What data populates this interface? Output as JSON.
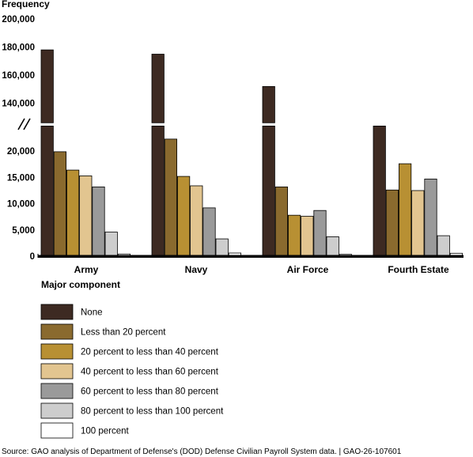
{
  "chart_data": {
    "type": "bar",
    "ylabel": "Frequency",
    "xlabel": "Major component",
    "categories": [
      "Army",
      "Navy",
      "Air Force",
      "Fourth Estate"
    ],
    "y_ticks_upper": [
      "200,000",
      "180,000",
      "160,000",
      "140,000"
    ],
    "y_ticks_lower": [
      "20,000",
      "15,000",
      "10,000",
      "5,000",
      "0"
    ],
    "ylim_lower": [
      0,
      25000
    ],
    "ylim_upper": [
      125000,
      200000
    ],
    "axis_break": true,
    "legend_placement": "bottom",
    "series": [
      {
        "name": "None",
        "color": "#3d2a22",
        "values": [
          178000,
          175000,
          152000,
          126000
        ]
      },
      {
        "name": "Less than 20 percent",
        "color": "#8a6a2e",
        "values": [
          19900,
          22300,
          13200,
          12600
        ]
      },
      {
        "name": "20 percent to less than 40 percent",
        "color": "#b89033",
        "values": [
          16400,
          15200,
          7800,
          17600
        ]
      },
      {
        "name": "40 percent to less than 60 percent",
        "color": "#e2c590",
        "values": [
          15300,
          13400,
          7600,
          12500
        ]
      },
      {
        "name": "60 percent to less than 80 percent",
        "color": "#9a9a9a",
        "values": [
          13200,
          9200,
          8700,
          14700
        ]
      },
      {
        "name": "80 percent to less than 100 percent",
        "color": "#cdcdcd",
        "values": [
          4600,
          3300,
          3700,
          3900
        ]
      },
      {
        "name": "100 percent",
        "color": "#ffffff",
        "values": [
          400,
          600,
          350,
          550
        ]
      }
    ]
  },
  "source": "Source: GAO analysis of Department of Defense's (DOD) Defense Civilian Payroll System data.  |  GAO-26-107601"
}
